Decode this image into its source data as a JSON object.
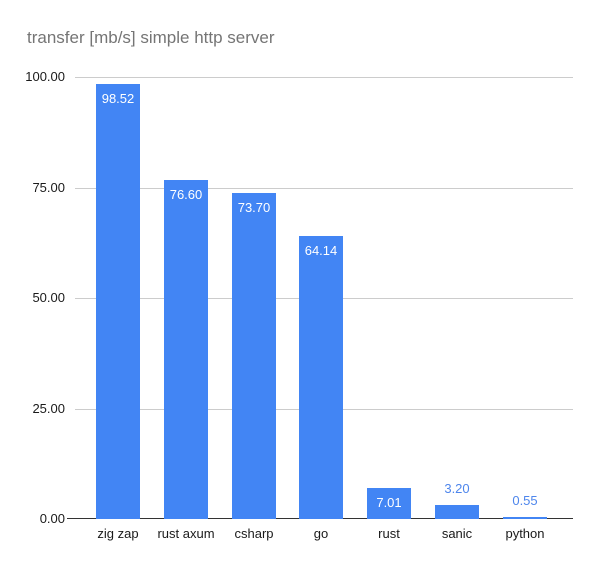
{
  "title": "transfer [mb/s] simple http server",
  "chart_data": {
    "type": "bar",
    "title": "transfer [mb/s] simple http server",
    "categories": [
      "zig zap",
      "rust axum",
      "csharp",
      "go",
      "rust",
      "sanic",
      "python"
    ],
    "values": [
      98.52,
      76.6,
      73.7,
      64.14,
      7.01,
      3.2,
      0.55
    ],
    "value_labels": [
      "98.52",
      "76.60",
      "73.70",
      "64.14",
      "7.01",
      "3.20",
      "0.55"
    ],
    "ylabel": "",
    "xlabel": "",
    "ylim": [
      0,
      100
    ],
    "y_ticks": [
      "100.00",
      "75.00",
      "50.00",
      "25.00",
      "0.00"
    ],
    "grid": true,
    "legend_position": "none",
    "colors": {
      "bar": "#4285f4",
      "value_label_inside": "#ffffff",
      "value_label_outside": "#4e86ec",
      "gridline": "#cccccc",
      "baseline": "#333333",
      "title_text": "#757575",
      "axis_text": "#1a1a1a",
      "background": "#ffffff"
    }
  }
}
